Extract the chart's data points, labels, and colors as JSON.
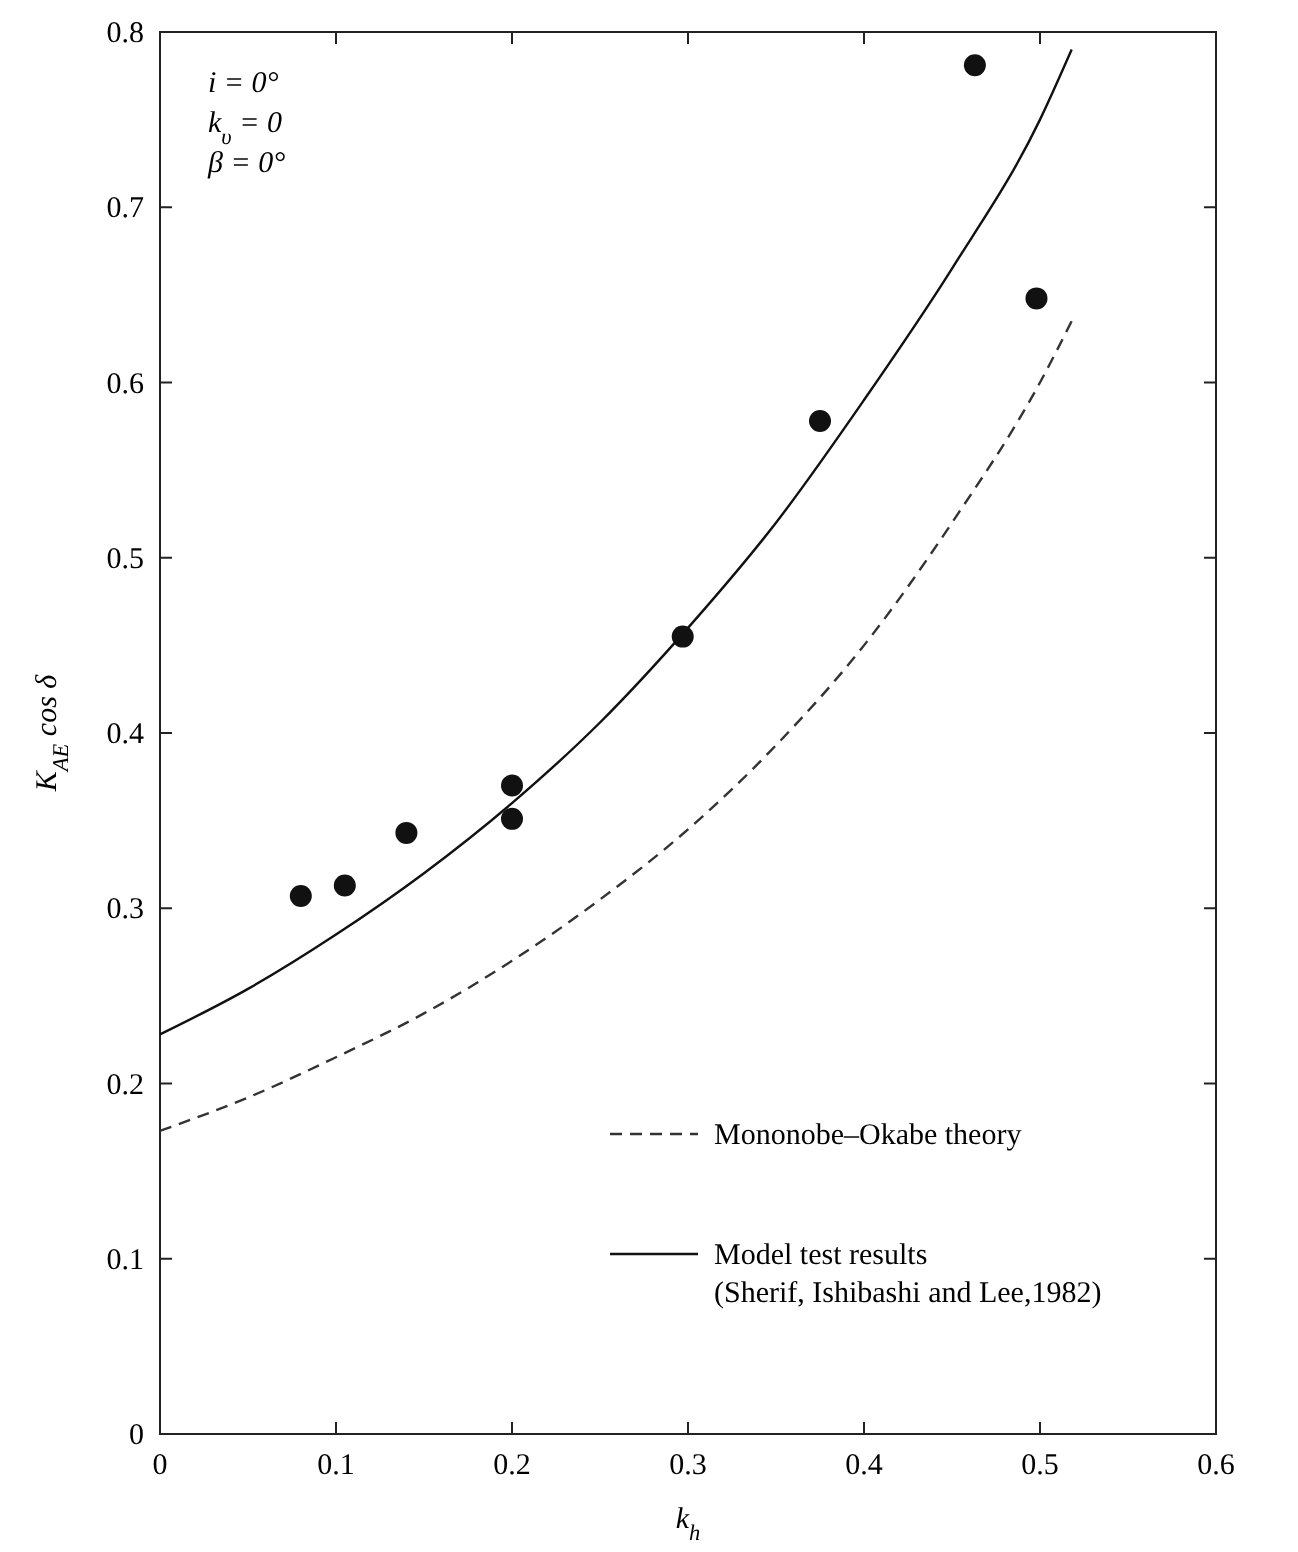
{
  "chart_data": {
    "type": "scatter",
    "xlabel": "k$_{h}$",
    "ylabel": "K$_{AE}$ cos δ",
    "xlim": [
      0,
      0.6
    ],
    "ylim": [
      0,
      0.8
    ],
    "xticks": [
      0,
      0.1,
      0.2,
      0.3,
      0.4,
      0.5,
      0.6
    ],
    "yticks": [
      0,
      0.1,
      0.2,
      0.3,
      0.4,
      0.5,
      0.6,
      0.7,
      0.8
    ],
    "grid": false,
    "legend": "bottom right",
    "annotations": [
      "i = 0°",
      "k$_{υ}$ = 0",
      "β = 0°"
    ],
    "series": [
      {
        "name": "Mononobe–Okabe theory",
        "type": "line",
        "line_style": "dashed",
        "marker": "none",
        "color": "#333333",
        "x": [
          0,
          0.05,
          0.1,
          0.15,
          0.2,
          0.25,
          0.3,
          0.35,
          0.4,
          0.45,
          0.5,
          0.518
        ],
        "values": [
          0.173,
          0.192,
          0.215,
          0.24,
          0.27,
          0.305,
          0.345,
          0.393,
          0.45,
          0.52,
          0.6,
          0.635
        ]
      },
      {
        "name": "Model test results\n(Sherif, Ishibashi and Lee,1982)",
        "type": "line",
        "line_style": "solid",
        "marker": "none",
        "color": "#111111",
        "x": [
          0,
          0.05,
          0.1,
          0.15,
          0.2,
          0.25,
          0.3,
          0.35,
          0.4,
          0.45,
          0.5,
          0.518
        ],
        "values": [
          0.228,
          0.254,
          0.285,
          0.32,
          0.36,
          0.406,
          0.46,
          0.52,
          0.59,
          0.665,
          0.75,
          0.79
        ]
      },
      {
        "type": "scatter",
        "marker": "circle",
        "color": "#111111",
        "x": [
          0.08,
          0.105,
          0.14,
          0.2,
          0.2,
          0.297,
          0.375,
          0.463,
          0.498
        ],
        "values": [
          0.307,
          0.313,
          0.343,
          0.37,
          0.351,
          0.455,
          0.578,
          0.781,
          0.648
        ]
      }
    ]
  }
}
